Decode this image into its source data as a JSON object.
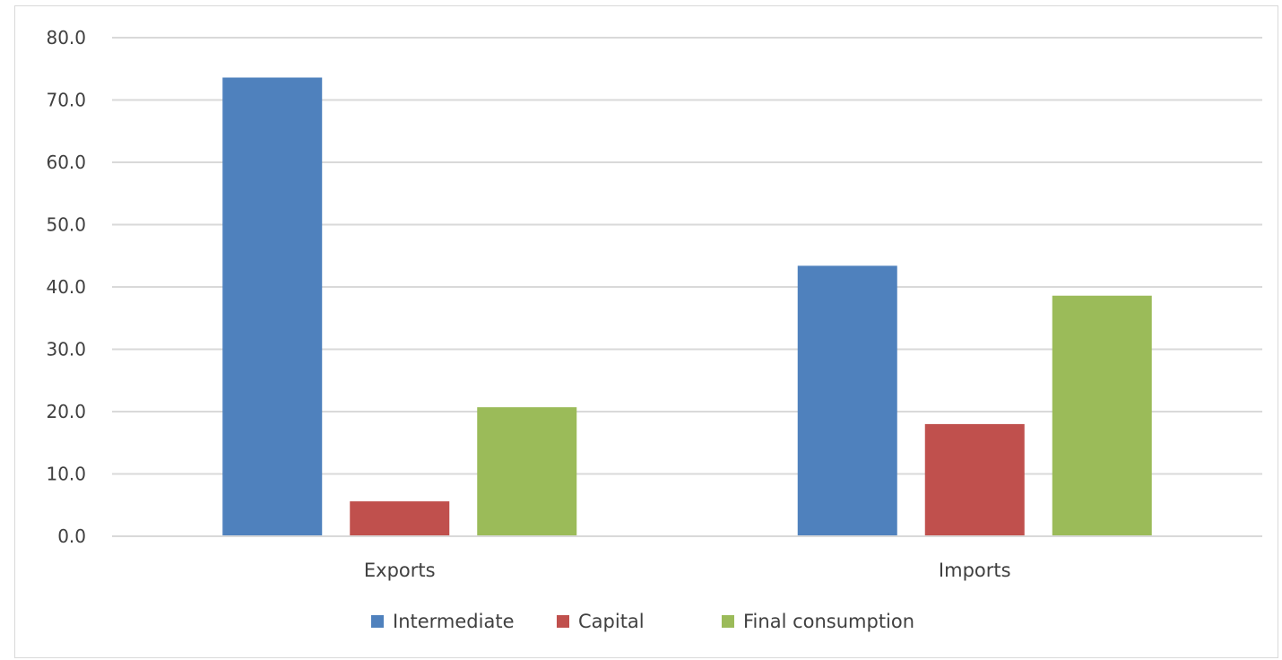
{
  "chart_data": {
    "type": "bar",
    "title": "",
    "xlabel": "",
    "ylabel": "",
    "categories": [
      "Exports",
      "Imports"
    ],
    "series": [
      {
        "name": "Intermediate",
        "color": "#4f81bd",
        "values": [
          73.6,
          43.4
        ]
      },
      {
        "name": "Capital",
        "color": "#c0504d",
        "values": [
          5.6,
          18.0
        ]
      },
      {
        "name": "Final consumption",
        "color": "#9bbb59",
        "values": [
          20.7,
          38.6
        ]
      }
    ],
    "ylim": [
      0,
      80
    ],
    "yticks": [
      "0.0",
      "10.0",
      "20.0",
      "30.0",
      "40.0",
      "50.0",
      "60.0",
      "70.0",
      "80.0"
    ],
    "grid": true,
    "legend_position": "bottom"
  }
}
